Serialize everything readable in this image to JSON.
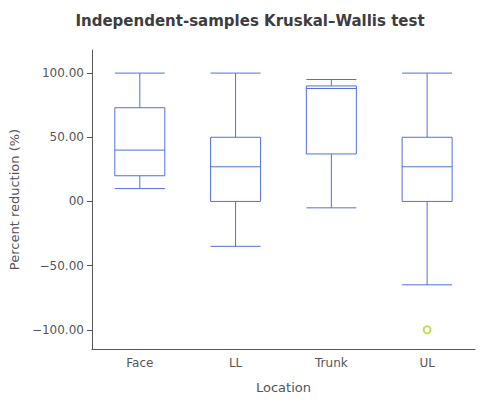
{
  "chart_data": {
    "type": "box",
    "title": "Independent-samples Kruskal–Wallis test",
    "xlabel": "Location",
    "ylabel": "Percent reduction (%)",
    "categories": [
      "Face",
      "LL",
      "Trunk",
      "UL"
    ],
    "values": [
      [
        10,
        20,
        40,
        73,
        100
      ],
      [
        -35,
        0,
        27,
        50,
        100
      ],
      [
        -5,
        37,
        88,
        90,
        95
      ],
      [
        -65,
        0,
        27,
        50,
        100
      ]
    ],
    "fliers": [
      [],
      [],
      [],
      [
        -100
      ]
    ],
    "ylim": [
      -115,
      118
    ],
    "yticks": [
      {
        "value": -100,
        "label": "−100.00"
      },
      {
        "value": -50,
        "label": "−50.00"
      },
      {
        "value": 0,
        "label": "00"
      },
      {
        "value": 50,
        "label": "50.00"
      },
      {
        "value": 100,
        "label": "100.00"
      }
    ],
    "grid": false
  }
}
